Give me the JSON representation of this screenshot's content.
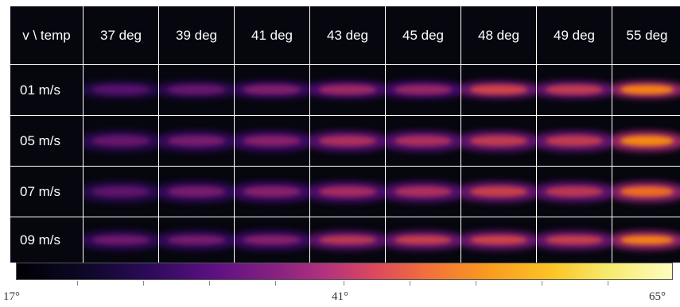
{
  "corner_label": "v \\ temp",
  "columns": [
    "37 deg",
    "39 deg",
    "41 deg",
    "43 deg",
    "45 deg",
    "48 deg",
    "49 deg",
    "55 deg"
  ],
  "rows": [
    "01 m/s",
    "05 m/s",
    "07 m/s",
    "09 m/s"
  ],
  "intensity": [
    [
      0.3,
      0.34,
      0.4,
      0.48,
      0.46,
      0.62,
      0.58,
      0.8
    ],
    [
      0.34,
      0.38,
      0.42,
      0.52,
      0.52,
      0.58,
      0.58,
      0.82
    ],
    [
      0.32,
      0.38,
      0.42,
      0.5,
      0.52,
      0.6,
      0.56,
      0.75
    ],
    [
      0.36,
      0.38,
      0.42,
      0.56,
      0.6,
      0.62,
      0.6,
      0.8
    ]
  ],
  "colorbar": {
    "labels": [
      "17°",
      "41°",
      "65°"
    ],
    "stops": [
      "#000004",
      "#2c0a59",
      "#8a2281",
      "#dd4a5c",
      "#fa9b1e",
      "#fcfdbf"
    ]
  }
}
